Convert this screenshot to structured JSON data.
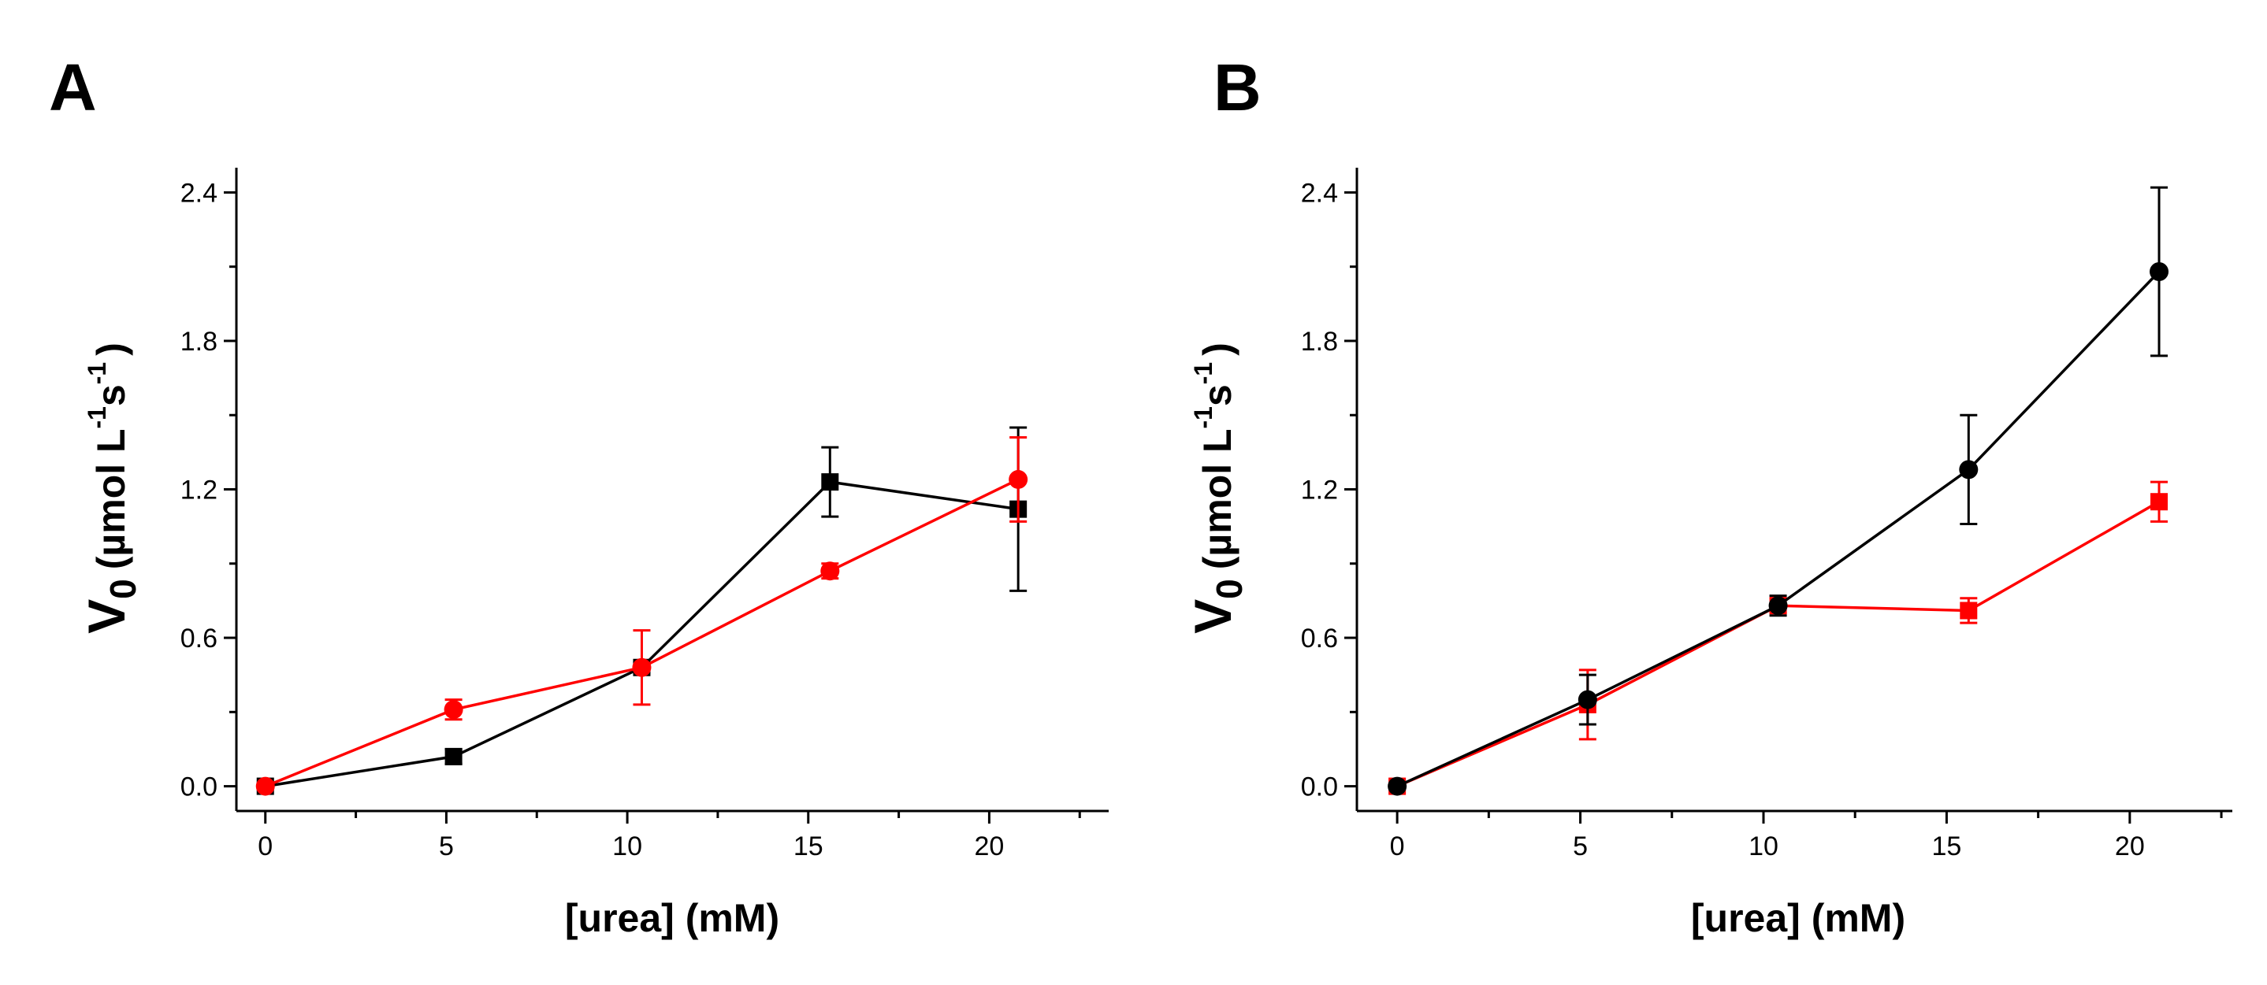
{
  "chart_data": [
    {
      "panel_label": "A",
      "type": "line",
      "xlabel": "[urea] (mM)",
      "ylabel": {
        "main": "V",
        "main_sub": "0",
        "units": "(µmol L",
        "units_sup1": "-1",
        "units_mid": "s",
        "units_sup2": "-1",
        "units_close": ")"
      },
      "xlim": [
        -0.8,
        23.3
      ],
      "ylim": [
        -0.1,
        2.5
      ],
      "x_ticks": [
        0,
        5,
        10,
        15,
        20
      ],
      "x_ticks_minor": [
        2.5,
        7.5,
        12.5,
        17.5,
        22.5
      ],
      "y_ticks": [
        0.0,
        0.6,
        1.2,
        1.8,
        2.4
      ],
      "y_ticks_minor": [
        0.3,
        0.9,
        1.5,
        2.1
      ],
      "y_tick_labels": [
        "0.0",
        "0.6",
        "1.2",
        "1.8",
        "2.4"
      ],
      "x_tick_labels": [
        "0",
        "5",
        "10",
        "15",
        "20"
      ],
      "grid": false,
      "legend": false,
      "series": [
        {
          "color": "#000000",
          "marker": "square",
          "x": [
            0,
            5.2,
            10.4,
            15.6,
            20.8
          ],
          "y": [
            0.0,
            0.12,
            0.48,
            1.23,
            1.12
          ],
          "yerr": [
            0.01,
            0.03,
            0.02,
            0.14,
            0.33
          ]
        },
        {
          "color": "#ff0000",
          "marker": "circle",
          "x": [
            0,
            5.2,
            10.4,
            15.6,
            20.8
          ],
          "y": [
            0.0,
            0.31,
            0.48,
            0.87,
            1.24
          ],
          "yerr": [
            0.01,
            0.04,
            0.15,
            0.03,
            0.17
          ]
        }
      ]
    },
    {
      "panel_label": "B",
      "type": "line",
      "xlabel": "[urea] (mM)",
      "ylabel": {
        "main": "V",
        "main_sub": "0",
        "units": "(µmol L",
        "units_sup1": "-1",
        "units_mid": "s",
        "units_sup2": "-1",
        "units_close": ")"
      },
      "xlim": [
        -1.1,
        22.8
      ],
      "ylim": [
        -0.1,
        2.5
      ],
      "x_ticks": [
        0,
        5,
        10,
        15,
        20
      ],
      "x_ticks_minor": [
        2.5,
        7.5,
        12.5,
        17.5,
        22.5
      ],
      "y_ticks": [
        0.0,
        0.6,
        1.2,
        1.8,
        2.4
      ],
      "y_ticks_minor": [
        0.3,
        0.9,
        1.5,
        2.1
      ],
      "y_tick_labels": [
        "0.0",
        "0.6",
        "1.2",
        "1.8",
        "2.4"
      ],
      "x_tick_labels": [
        "0",
        "5",
        "10",
        "15",
        "20"
      ],
      "grid": false,
      "legend": false,
      "series": [
        {
          "color": "#ff0000",
          "marker": "square",
          "x": [
            0,
            5.2,
            10.4,
            15.6,
            20.8
          ],
          "y": [
            0.0,
            0.33,
            0.73,
            0.71,
            1.15
          ],
          "yerr": [
            0.01,
            0.14,
            0.03,
            0.05,
            0.08
          ]
        },
        {
          "color": "#000000",
          "marker": "circle",
          "x": [
            0,
            5.2,
            10.4,
            15.6,
            20.8
          ],
          "y": [
            0.0,
            0.35,
            0.73,
            1.28,
            2.08
          ],
          "yerr": [
            0.01,
            0.1,
            0.04,
            0.22,
            0.34
          ]
        }
      ]
    }
  ]
}
